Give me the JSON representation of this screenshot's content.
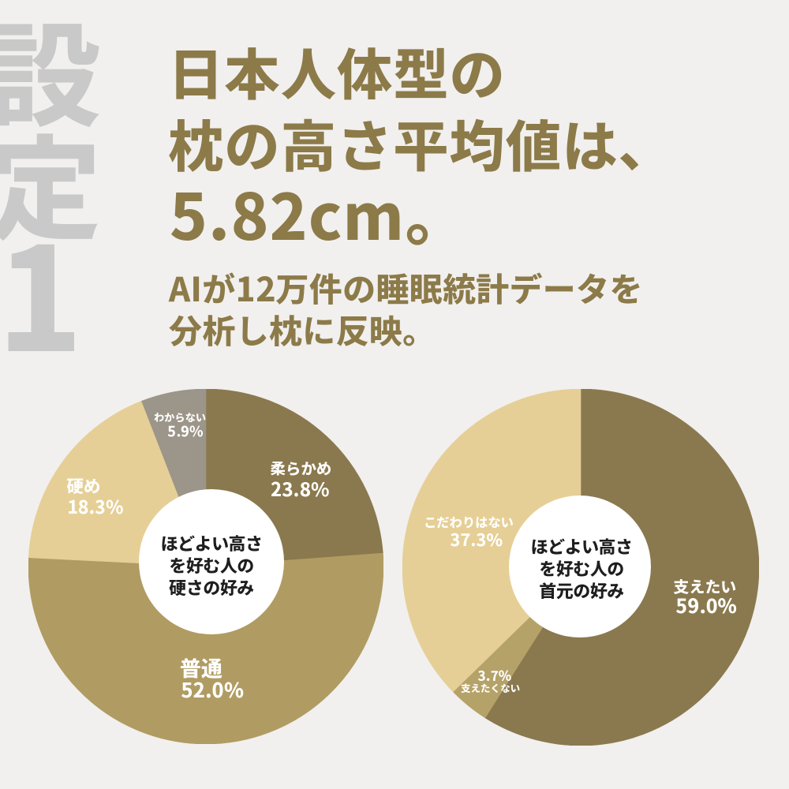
{
  "page": {
    "background": "#f1f0ee"
  },
  "badge": {
    "text": "設定1",
    "color": "#c9c9c9"
  },
  "header": {
    "title_lines": [
      "日本人体型の",
      "枕の高さ平均値は、",
      "5.82cm。"
    ],
    "subtitle_lines": [
      "AIが12万件の睡眠統計データを",
      "分析し枕に反映。"
    ],
    "color": "#8c7a49"
  },
  "chart_data": [
    {
      "type": "pie",
      "title": "ほどよい高さを好む人の硬さの好み",
      "center_label_lines": [
        "ほどよい高さ",
        "を好む人の",
        "硬さの好み"
      ],
      "start_angle_deg": 0,
      "direction": "clockwise",
      "donut_hole_color": "#ffffff",
      "slices": [
        {
          "label": "柔らかめ",
          "value": 23.8,
          "pct_text": "23.8%",
          "color": "#8a794e"
        },
        {
          "label": "普通",
          "value": 52.0,
          "pct_text": "52.0%",
          "color": "#b09c62"
        },
        {
          "label": "硬め",
          "value": 18.3,
          "pct_text": "18.3%",
          "color": "#e6cf96"
        },
        {
          "label": "わからない",
          "value": 5.9,
          "pct_text": "5.9%",
          "color": "#9c9589"
        }
      ]
    },
    {
      "type": "pie",
      "title": "ほどよい高さを好む人の首元の好み",
      "center_label_lines": [
        "ほどよい高さ",
        "を好む人の",
        "首元の好み"
      ],
      "start_angle_deg": 0,
      "direction": "clockwise",
      "donut_hole_color": "#ffffff",
      "slices": [
        {
          "label": "支えたい",
          "value": 59.0,
          "pct_text": "59.0%",
          "color": "#8a794e"
        },
        {
          "label": "支えたくない",
          "value": 3.7,
          "pct_text": "3.7%",
          "color": "#b5a268"
        },
        {
          "label": "こだわりはない",
          "value": 37.3,
          "pct_text": "37.3%",
          "color": "#e6cf96"
        }
      ]
    }
  ]
}
